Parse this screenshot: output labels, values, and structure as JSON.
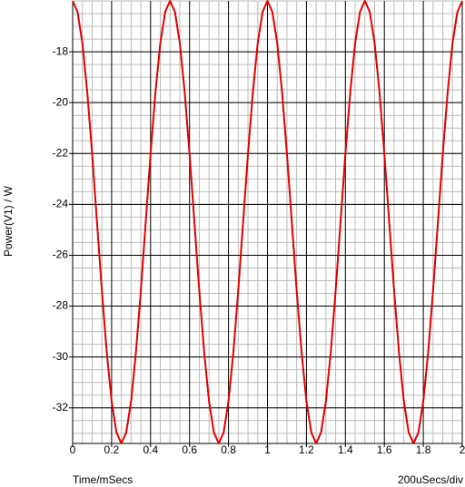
{
  "chart_data": {
    "type": "line",
    "y_label": "Power(V1) / W",
    "x_label": "Time/mSecs",
    "x_scale_note": "200uSecs/div",
    "x": [
      0,
      0.025,
      0.05,
      0.075,
      0.1,
      0.125,
      0.15,
      0.175,
      0.2,
      0.225,
      0.25,
      0.275,
      0.3,
      0.325,
      0.35,
      0.375,
      0.4,
      0.425,
      0.45,
      0.475,
      0.5,
      0.525,
      0.55,
      0.575,
      0.6,
      0.625,
      0.65,
      0.675,
      0.7,
      0.725,
      0.75,
      0.775,
      0.8,
      0.825,
      0.85,
      0.875,
      0.9,
      0.925,
      0.95,
      0.975,
      1,
      1.025,
      1.05,
      1.075,
      1.1,
      1.125,
      1.15,
      1.175,
      1.2,
      1.225,
      1.25,
      1.275,
      1.3,
      1.325,
      1.35,
      1.375,
      1.4,
      1.425,
      1.45,
      1.475,
      1.5,
      1.525,
      1.55,
      1.575,
      1.6,
      1.625,
      1.65,
      1.675,
      1.7,
      1.725,
      1.75,
      1.775,
      1.8,
      1.825,
      1.85,
      1.875,
      1.9,
      1.925,
      1.95,
      1.975,
      2
    ],
    "series": [
      {
        "name": "Power(V1)",
        "color": "#e00000",
        "values": [
          -16.0,
          -16.43,
          -17.66,
          -19.59,
          -22.01,
          -24.7,
          -27.39,
          -29.81,
          -31.74,
          -32.97,
          -33.4,
          -32.97,
          -31.74,
          -29.81,
          -27.39,
          -24.7,
          -22.01,
          -19.59,
          -17.66,
          -16.43,
          -16.0,
          -16.43,
          -17.66,
          -19.59,
          -22.01,
          -24.7,
          -27.39,
          -29.81,
          -31.74,
          -32.97,
          -33.4,
          -32.97,
          -31.74,
          -29.81,
          -27.39,
          -24.7,
          -22.01,
          -19.59,
          -17.66,
          -16.43,
          -16.0,
          -16.43,
          -17.66,
          -19.59,
          -22.01,
          -24.7,
          -27.39,
          -29.81,
          -31.74,
          -32.97,
          -33.4,
          -32.97,
          -31.74,
          -29.81,
          -27.39,
          -24.7,
          -22.01,
          -19.59,
          -17.66,
          -16.43,
          -16.0,
          -16.43,
          -17.66,
          -19.59,
          -22.01,
          -24.7,
          -27.39,
          -29.81,
          -31.74,
          -32.97,
          -33.4,
          -32.97,
          -31.74,
          -29.81,
          -27.39,
          -24.7,
          -22.01,
          -19.59,
          -17.66,
          -16.43,
          -16.0
        ]
      }
    ],
    "xlim": [
      0,
      2
    ],
    "xticks": [
      0,
      0.2,
      0.4,
      0.6,
      0.8,
      1,
      1.2,
      1.4,
      1.6,
      1.8,
      2
    ],
    "ylim": [
      -33.4,
      -16
    ],
    "yticks": [
      -32,
      -30,
      -28,
      -26,
      -24,
      -22,
      -20,
      -18
    ],
    "grid": true
  }
}
